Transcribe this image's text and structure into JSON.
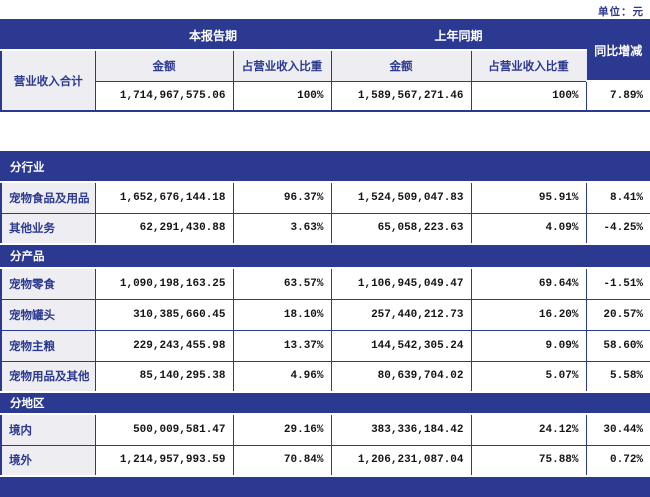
{
  "meta": {
    "unit_note": "单位：元"
  },
  "colors": {
    "primary": "#2b3990",
    "label_bg": "#eeeef2",
    "border": "#2b3990",
    "number_text": "#151515"
  },
  "summary_table": {
    "group_current": "本报告期",
    "group_prior": "上年同期",
    "yoy_header": "同比增减",
    "sub_amount_current": "金额",
    "sub_pct_current": "占营业收入比重",
    "sub_amount_prior": "金额",
    "sub_pct_prior": "占营业收入比重",
    "row_label": "营业收入合计",
    "amount_current": "1,714,967,575.06",
    "pct_current": "100%",
    "amount_prior": "1,589,567,271.46",
    "pct_prior": "100%",
    "yoy": "7.89%"
  },
  "breakdown_table": {
    "sections": [
      {
        "title": "分行业",
        "rows": [
          {
            "label": "宠物食品及用品",
            "amount_current": "1,652,676,144.18",
            "pct_current": "96.37%",
            "amount_prior": "1,524,509,047.83",
            "pct_prior": "95.91%",
            "yoy": "8.41%"
          },
          {
            "label": "其他业务",
            "amount_current": "62,291,430.88",
            "pct_current": "3.63%",
            "amount_prior": "65,058,223.63",
            "pct_prior": "4.09%",
            "yoy": "-4.25%"
          }
        ]
      },
      {
        "title": "分产品",
        "rows": [
          {
            "label": "宠物零食",
            "amount_current": "1,090,198,163.25",
            "pct_current": "63.57%",
            "amount_prior": "1,106,945,049.47",
            "pct_prior": "69.64%",
            "yoy": "-1.51%"
          },
          {
            "label": "宠物罐头",
            "amount_current": "310,385,660.45",
            "pct_current": "18.10%",
            "amount_prior": "257,440,212.73",
            "pct_prior": "16.20%",
            "yoy": "20.57%"
          },
          {
            "label": "宠物主粮",
            "amount_current": "229,243,455.98",
            "pct_current": "13.37%",
            "amount_prior": "144,542,305.24",
            "pct_prior": "9.09%",
            "yoy": "58.60%"
          },
          {
            "label": "宠物用品及其他",
            "amount_current": "85,140,295.38",
            "pct_current": "4.96%",
            "amount_prior": "80,639,704.02",
            "pct_prior": "5.07%",
            "yoy": "5.58%"
          }
        ]
      },
      {
        "title": "分地区",
        "rows": [
          {
            "label": "境内",
            "amount_current": "500,009,581.47",
            "pct_current": "29.16%",
            "amount_prior": "383,336,184.42",
            "pct_prior": "24.12%",
            "yoy": "30.44%"
          },
          {
            "label": "境外",
            "amount_current": "1,214,957,993.59",
            "pct_current": "70.84%",
            "amount_prior": "1,206,231,087.04",
            "pct_prior": "75.88%",
            "yoy": "0.72%"
          }
        ]
      }
    ]
  }
}
